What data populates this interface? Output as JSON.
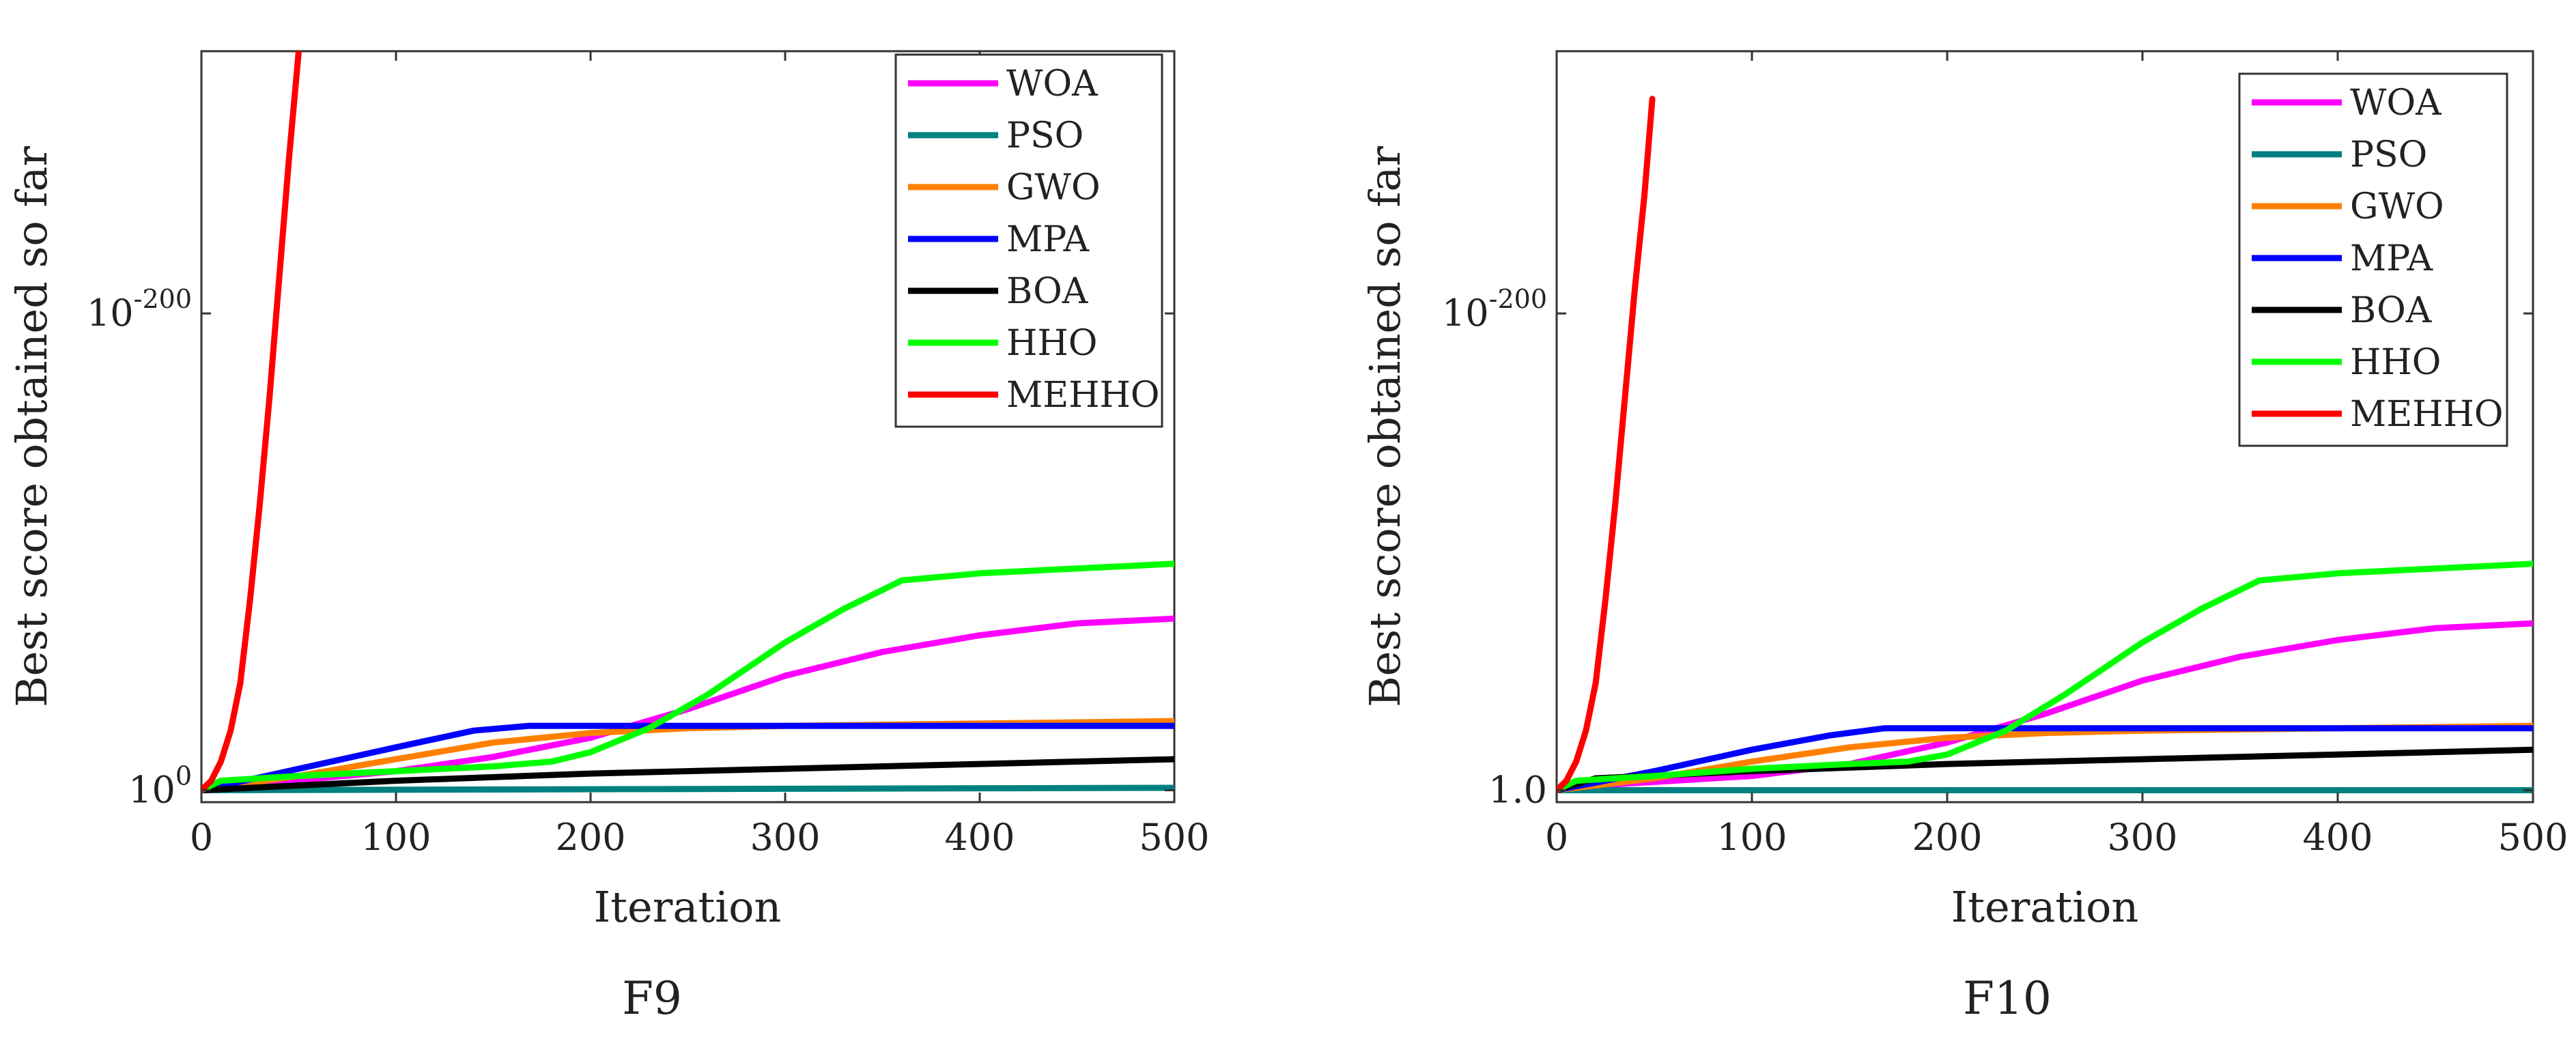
{
  "chart_data": [
    {
      "type": "line",
      "caption": "F9",
      "xlabel": "Iteration",
      "ylabel": "Best score obtained so far",
      "xlim": [
        0,
        500
      ],
      "xticks": [
        0,
        100,
        200,
        300,
        400,
        500
      ],
      "yscale": "log",
      "ylim_exponent": [
        -310,
        5
      ],
      "yticks": [
        {
          "exponent": 0,
          "base": "10",
          "exp_label": "0"
        },
        {
          "exponent": -200,
          "base": "10",
          "exp_label": "-200"
        }
      ],
      "legend_position": "top-right",
      "series": [
        {
          "name": "WOA",
          "color": "#ff00ff",
          "x": [
            0,
            20,
            60,
            100,
            150,
            200,
            250,
            300,
            350,
            400,
            450,
            500
          ],
          "log10y": [
            0,
            -2,
            -5,
            -8,
            -14,
            -22,
            -34,
            -48,
            -58,
            -65,
            -70,
            -72
          ]
        },
        {
          "name": "PSO",
          "color": "#008080",
          "x": [
            0,
            500
          ],
          "log10y": [
            0,
            -1
          ]
        },
        {
          "name": "GWO",
          "color": "#ff8000",
          "x": [
            0,
            50,
            100,
            150,
            200,
            250,
            300,
            400,
            500
          ],
          "log10y": [
            0,
            -6,
            -13,
            -20,
            -24,
            -26,
            -27,
            -28,
            -29
          ]
        },
        {
          "name": "MPA",
          "color": "#0000ff",
          "x": [
            0,
            50,
            100,
            140,
            168,
            200,
            300,
            400,
            500
          ],
          "log10y": [
            0,
            -9,
            -18,
            -25,
            -27,
            -27,
            -27,
            -27,
            -27
          ]
        },
        {
          "name": "BOA",
          "color": "#000000",
          "x": [
            0,
            100,
            200,
            300,
            400,
            500
          ],
          "log10y": [
            0,
            -4,
            -7,
            -9,
            -11,
            -13
          ]
        },
        {
          "name": "HHO",
          "color": "#00ff00",
          "x": [
            0,
            10,
            50,
            100,
            150,
            180,
            200,
            230,
            260,
            300,
            330,
            360,
            400,
            450,
            500
          ],
          "log10y": [
            0,
            -4,
            -6,
            -8,
            -10,
            -12,
            -16,
            -26,
            -40,
            -62,
            -76,
            -88,
            -91,
            -93,
            -95
          ]
        },
        {
          "name": "MEHHO",
          "color": "#ff0000",
          "x": [
            0,
            5,
            10,
            15,
            20,
            25,
            30,
            35,
            40,
            45,
            50
          ],
          "log10y": [
            0,
            -4,
            -12,
            -25,
            -45,
            -80,
            -120,
            -165,
            -215,
            -265,
            -310
          ]
        }
      ]
    },
    {
      "type": "line",
      "caption": "F10",
      "xlabel": "Iteration",
      "ylabel": "Best score obtained so far",
      "xlim": [
        0,
        500
      ],
      "xticks": [
        0,
        100,
        200,
        300,
        400,
        500
      ],
      "yscale": "log",
      "ylim_exponent": [
        -310,
        5
      ],
      "yticks": [
        {
          "exponent": 0,
          "base": "1.0",
          "exp_label": ""
        },
        {
          "exponent": -200,
          "base": "10",
          "exp_label": "-200"
        }
      ],
      "legend_position": "top-right",
      "series": [
        {
          "name": "WOA",
          "color": "#ff00ff",
          "x": [
            0,
            20,
            60,
            100,
            150,
            200,
            250,
            300,
            350,
            400,
            450,
            500
          ],
          "log10y": [
            0,
            -2,
            -4,
            -6,
            -11,
            -20,
            -32,
            -46,
            -56,
            -63,
            -68,
            -70
          ]
        },
        {
          "name": "PSO",
          "color": "#008080",
          "x": [
            0,
            500
          ],
          "log10y": [
            0,
            0
          ]
        },
        {
          "name": "GWO",
          "color": "#ff8000",
          "x": [
            0,
            50,
            100,
            150,
            200,
            250,
            300,
            400,
            500
          ],
          "log10y": [
            0,
            -5,
            -12,
            -18,
            -22,
            -24,
            -25,
            -26,
            -27
          ]
        },
        {
          "name": "MPA",
          "color": "#0000ff",
          "x": [
            0,
            50,
            100,
            140,
            168,
            200,
            300,
            400,
            500
          ],
          "log10y": [
            0,
            -8,
            -17,
            -23,
            -26,
            -26,
            -26,
            -26,
            -26
          ]
        },
        {
          "name": "BOA",
          "color": "#000000",
          "x": [
            0,
            20,
            100,
            200,
            300,
            400,
            500
          ],
          "log10y": [
            0,
            -5,
            -8,
            -11,
            -13,
            -15,
            -17
          ]
        },
        {
          "name": "HHO",
          "color": "#00ff00",
          "x": [
            0,
            10,
            50,
            100,
            150,
            180,
            200,
            230,
            260,
            300,
            330,
            360,
            400,
            450,
            500
          ],
          "log10y": [
            0,
            -4,
            -6,
            -9,
            -11,
            -12,
            -15,
            -25,
            -40,
            -62,
            -76,
            -88,
            -91,
            -93,
            -95
          ]
        },
        {
          "name": "MEHHO",
          "color": "#ff0000",
          "x": [
            0,
            5,
            10,
            15,
            20,
            25,
            30,
            35,
            40,
            45,
            49
          ],
          "log10y": [
            0,
            -4,
            -12,
            -25,
            -45,
            -80,
            -120,
            -165,
            -210,
            -250,
            -290
          ]
        }
      ]
    }
  ]
}
